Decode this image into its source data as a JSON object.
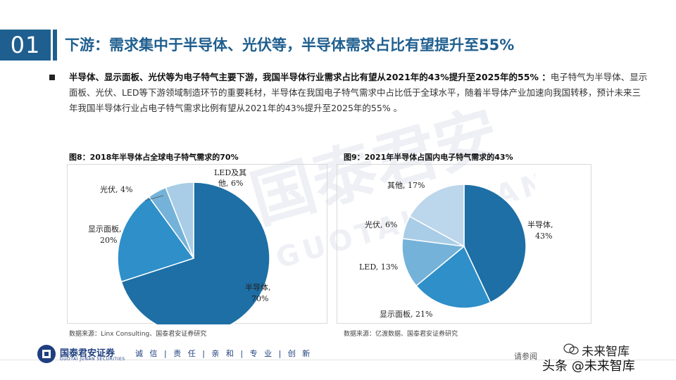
{
  "header": {
    "slide_number": "01",
    "title": "下游：需求集中于半导体、光伏等，半导体需求占比有望提升至55%"
  },
  "bullet": {
    "bold_text": "半导体、显示面板、光伏等为电子特气主要下游，我国半导体行业需求占比有望从2021年的43%提升至2025年的55% ：",
    "body_text": "电子特气为半导体、显示面板、光伏、LED等下游领域制造环节的重要耗材，半导体在我国电子特气需求中占比低于全球水平，随着半导体产业加速向我国转移，预计未来三年我国半导体行业占电子特气需求比例有望从2021年的43%提升至2025年的55% 。"
  },
  "figures": [
    {
      "title": "图8：2018年半导体占全球电子特气需求的70%",
      "source": "数据来源：Linx Consulting、国泰君安证券研究"
    },
    {
      "title": "图9：2021年半导体占国内电子特气需求的43%",
      "source": "数据来源：亿渡数据、国泰君安证券研究"
    }
  ],
  "chart_data": [
    {
      "type": "pie",
      "title": "图8：2018年半导体占全球电子特气需求的70%",
      "labels": [
        "半导体",
        "显示面板",
        "光伏",
        "LED及其他"
      ],
      "values": [
        70,
        20,
        4,
        6
      ],
      "value_labels": [
        "70%",
        "20%",
        "4%",
        "6%"
      ],
      "colors": [
        "#1d6fa5",
        "#2e8fc9",
        "#74b2d9",
        "#a9cde6"
      ]
    },
    {
      "type": "pie",
      "title": "图9：2021年半导体占国内电子特气需求的43%",
      "labels": [
        "半导体",
        "显示面板",
        "LED",
        "光伏",
        "其他"
      ],
      "values": [
        43,
        21,
        13,
        6,
        17
      ],
      "value_labels": [
        "43%",
        "21%",
        "13%",
        "6%",
        "17%"
      ],
      "colors": [
        "#1d6fa5",
        "#2e8fc9",
        "#74b2d9",
        "#a9cde6",
        "#bcd6ec"
      ]
    }
  ],
  "pie_label_text": {
    "chart1": {
      "semi_1": "半导体,",
      "semi_2": "70%",
      "display_1": "显示面板,",
      "display_2": "20%",
      "pv": "光伏, 4%",
      "led_1": "LED及其",
      "led_2": "他, 6%"
    },
    "chart2": {
      "semi_1": "半导体,",
      "semi_2": "43%",
      "display": "显示面板, 21%",
      "led": "LED, 13%",
      "pv": "光伏, 6%",
      "other": "其他, 17%"
    }
  },
  "footer": {
    "company": "国泰君安证券",
    "company_en": "GUOTAI JUNAN SECURITIES",
    "motto": "诚 信 | 责 任 | 亲 和 | 专 业 | 创 新",
    "disclaimer": "请参阅",
    "wechat_name": "未来智库",
    "watermark_text": "头条 @未来智库"
  },
  "watermark": {
    "cn": "国泰君安",
    "en": "GUOTAI JUNAN"
  },
  "colors": {
    "brand_blue": "#1f5f8f",
    "pie_dark": "#1d6fa5",
    "pie_mid": "#2e8fc9",
    "pie_light": "#74b2d9",
    "pie_pale": "#a9cde6"
  }
}
